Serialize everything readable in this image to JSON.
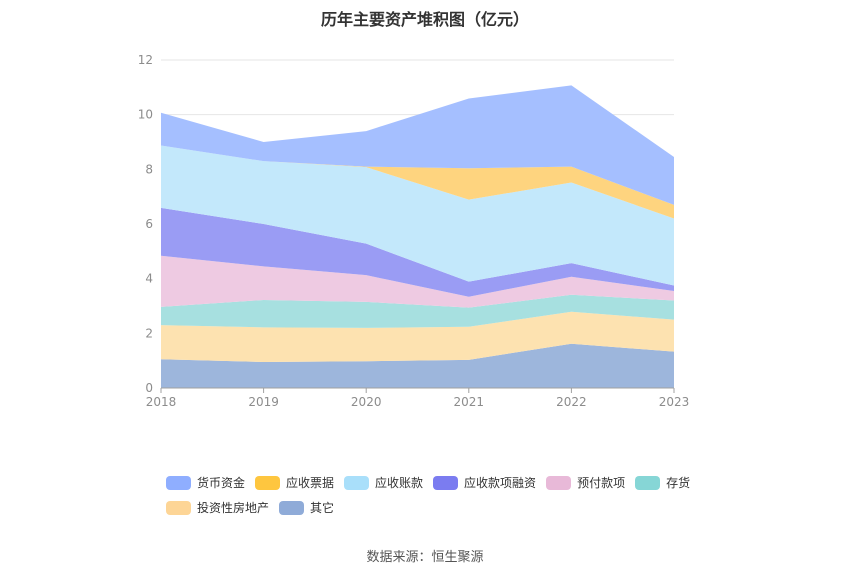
{
  "chart_data": {
    "type": "area",
    "stacked": true,
    "title": "历年主要资产堆积图（亿元）",
    "x": [
      "2018",
      "2019",
      "2020",
      "2021",
      "2022",
      "2023"
    ],
    "ylim": [
      0,
      12
    ],
    "yticks": [
      0,
      2,
      4,
      6,
      8,
      10,
      12
    ],
    "grid": true,
    "legend_position": "bottom",
    "series": [
      {
        "name": "其它",
        "color": "#9db6dc",
        "values": [
          1.05,
          0.95,
          0.98,
          1.03,
          1.62,
          1.33
        ]
      },
      {
        "name": "投资性房地产",
        "color": "#fde2b0",
        "values": [
          1.25,
          1.27,
          1.22,
          1.21,
          1.17,
          1.17
        ]
      },
      {
        "name": "存货",
        "color": "#a7e0e0",
        "values": [
          0.67,
          1.0,
          0.95,
          0.7,
          0.62,
          0.7
        ]
      },
      {
        "name": "预付款项",
        "color": "#eecae2",
        "values": [
          1.87,
          1.23,
          0.98,
          0.4,
          0.66,
          0.35
        ]
      },
      {
        "name": "应收款项融资",
        "color": "#9a9cf4",
        "values": [
          1.75,
          1.55,
          1.15,
          0.55,
          0.5,
          0.2
        ]
      },
      {
        "name": "应收账款",
        "color": "#c3e8fb",
        "values": [
          2.28,
          2.3,
          2.8,
          3.0,
          2.95,
          2.45
        ]
      },
      {
        "name": "应收票据",
        "color": "#fed47f",
        "values": [
          0.0,
          0.0,
          0.02,
          1.15,
          0.58,
          0.5
        ]
      },
      {
        "name": "货币资金",
        "color": "#a5bfff",
        "values": [
          1.2,
          0.7,
          1.3,
          2.55,
          2.97,
          1.75
        ]
      }
    ]
  },
  "legend_rows": [
    [
      {
        "name": "货币资金",
        "color": "#8faeff"
      },
      {
        "name": "应收票据",
        "color": "#fec63f"
      },
      {
        "name": "应收账款",
        "color": "#a9dffa"
      },
      {
        "name": "应收款项融资",
        "color": "#7b7cf0"
      },
      {
        "name": "预付款项",
        "color": "#e8b9d8"
      },
      {
        "name": "存货",
        "color": "#86d6d6"
      }
    ],
    [
      {
        "name": "投资性房地产",
        "color": "#fdd596"
      },
      {
        "name": "其它",
        "color": "#8fabd8"
      }
    ]
  ],
  "source": "数据来源：恒生聚源"
}
